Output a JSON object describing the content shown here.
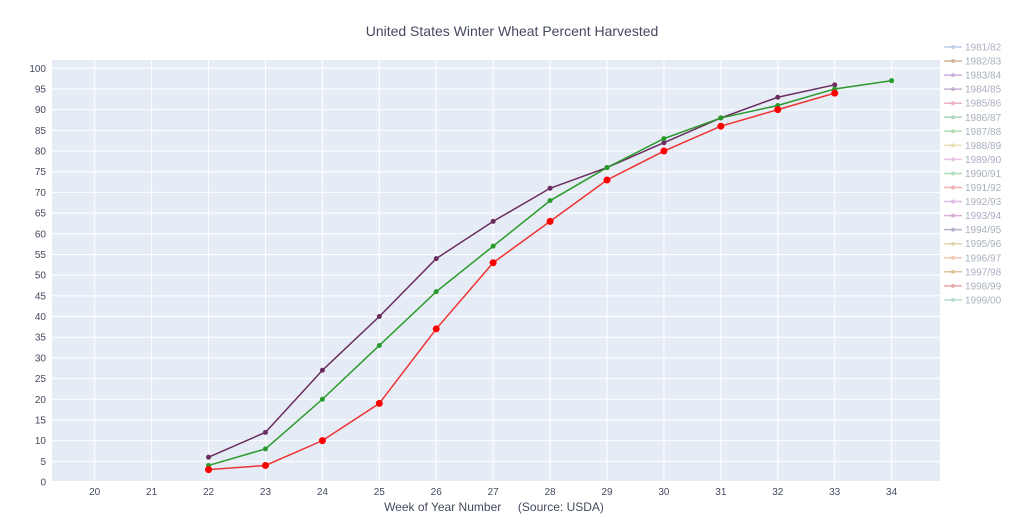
{
  "chart_data": {
    "type": "line",
    "title": "United States Winter Wheat Percent Harvested",
    "xlabel": "Week of Year Number     (Source: USDA)",
    "ylabel": "",
    "xlim": [
      19.25,
      34.85
    ],
    "ylim": [
      0,
      102
    ],
    "xticks": [
      20,
      21,
      22,
      23,
      24,
      25,
      26,
      27,
      28,
      29,
      30,
      31,
      32,
      33,
      34
    ],
    "yticks": [
      0,
      5,
      10,
      15,
      20,
      25,
      30,
      35,
      40,
      45,
      50,
      55,
      60,
      65,
      70,
      75,
      80,
      85,
      90,
      95,
      100
    ],
    "grid": true,
    "legend_position": "right",
    "plot_background": "#e5ecf6",
    "series": [
      {
        "name": "1981/82",
        "color": "#b7c6e6",
        "x": [],
        "y": []
      },
      {
        "name": "1982/83",
        "color": "#c9a98a",
        "x": [],
        "y": []
      },
      {
        "name": "1983/84",
        "color": "#c3a3d6",
        "x": [],
        "y": []
      },
      {
        "name": "1984/85",
        "color": "#b9a7cc",
        "x": [],
        "y": []
      },
      {
        "name": "1985/86",
        "color": "#e8a3c2",
        "x": [],
        "y": []
      },
      {
        "name": "1986/87",
        "color": "#9fcfb0",
        "x": [],
        "y": []
      },
      {
        "name": "1987/88",
        "color": "#a6d6a0",
        "x": [],
        "y": []
      },
      {
        "name": "1988/89",
        "color": "#e8d8a8",
        "x": [],
        "y": []
      },
      {
        "name": "1989/90",
        "color": "#e9b8e0",
        "x": [],
        "y": []
      },
      {
        "name": "1990/91",
        "color": "#a6d8b0",
        "x": [],
        "y": []
      },
      {
        "name": "1991/92",
        "color": "#eaa6a6",
        "x": [],
        "y": []
      },
      {
        "name": "1992/93",
        "color": "#d8b2e2",
        "x": [],
        "y": []
      },
      {
        "name": "1993/94",
        "color": "#d5a2cf",
        "x": [],
        "y": []
      },
      {
        "name": "1994/95",
        "color": "#a9a9c7",
        "x": [],
        "y": []
      },
      {
        "name": "1995/96",
        "color": "#d7d1a4",
        "x": [],
        "y": []
      },
      {
        "name": "1996/97",
        "color": "#f0c0a8",
        "x": [],
        "y": []
      },
      {
        "name": "1997/98",
        "color": "#d9b98a",
        "x": [],
        "y": []
      },
      {
        "name": "1998/99",
        "color": "#e59a9a",
        "x": [],
        "y": []
      },
      {
        "name": "1999/00",
        "color": "#aed8c2",
        "x": [],
        "y": []
      },
      {
        "name": "",
        "color": "#6b2c5f",
        "marker_size": 2.5,
        "x": [
          22,
          23,
          24,
          25,
          26,
          27,
          28,
          29,
          30,
          31,
          32,
          33
        ],
        "y": [
          6,
          12,
          27,
          40,
          54,
          63,
          71,
          76,
          82,
          88,
          93,
          96
        ]
      },
      {
        "name": "",
        "color": "#2a9a2a",
        "marker_size": 2.5,
        "x": [
          22,
          23,
          24,
          25,
          26,
          27,
          28,
          29,
          30,
          31,
          32,
          33,
          34
        ],
        "y": [
          4,
          8,
          20,
          33,
          46,
          57,
          68,
          76,
          83,
          88,
          91,
          95,
          97
        ]
      },
      {
        "name": "",
        "color": "#ff0000",
        "line_color": "#ee3333",
        "marker_size": 3.5,
        "x": [
          22,
          23,
          24,
          25,
          26,
          27,
          28,
          29,
          30,
          31,
          32,
          33
        ],
        "y": [
          3,
          4,
          10,
          19,
          37,
          53,
          63,
          73,
          80,
          86,
          90,
          94
        ]
      }
    ]
  }
}
